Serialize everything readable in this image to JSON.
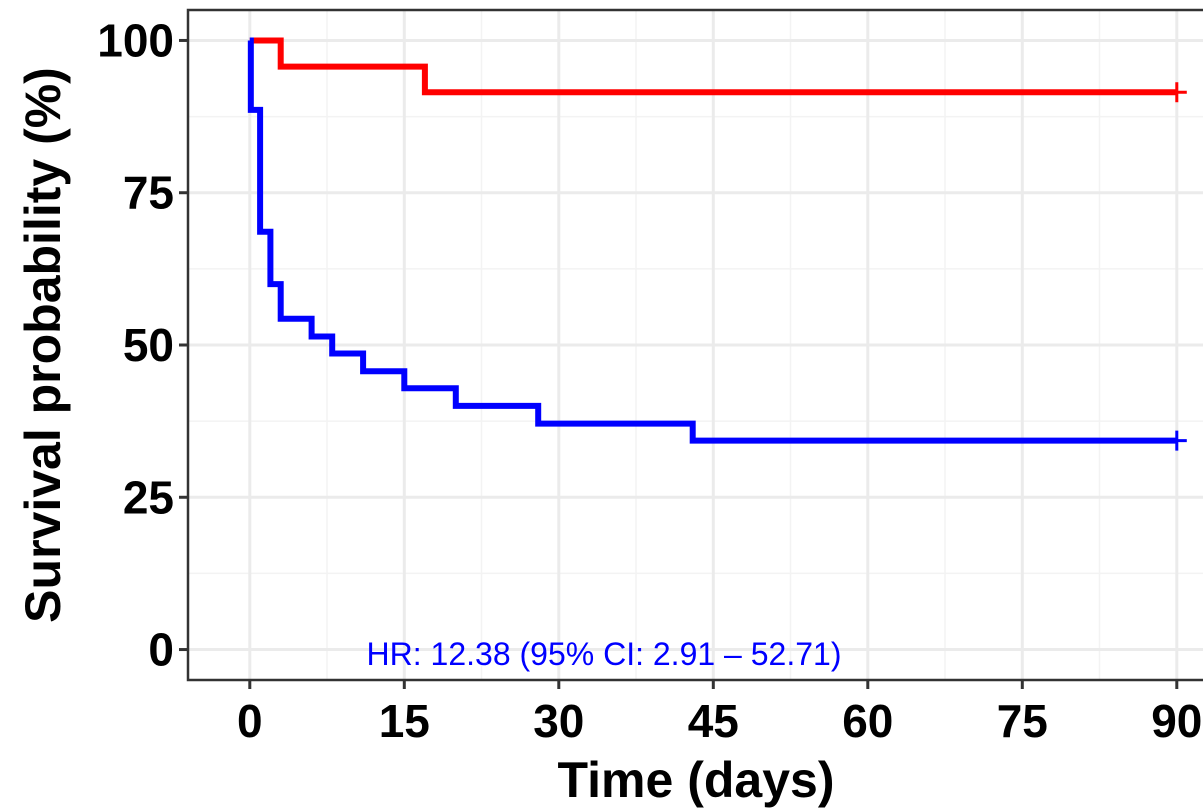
{
  "chart_data": {
    "type": "line",
    "subtype": "kaplan-meier step",
    "xlabel": "Time (days)",
    "ylabel": "Survival probability (%)",
    "xlim": [
      -6,
      94
    ],
    "ylim": [
      -5,
      105
    ],
    "x_ticks": [
      0,
      15,
      30,
      45,
      60,
      75,
      90
    ],
    "y_ticks": [
      0,
      25,
      50,
      75,
      100
    ],
    "x_tick_labels": [
      "0",
      "15",
      "30",
      "45",
      "60",
      "75",
      "90"
    ],
    "y_tick_labels": [
      "0",
      "25",
      "50",
      "75",
      "100"
    ],
    "grid": true,
    "legend": "none",
    "series": [
      {
        "color": "#ff0000",
        "steps": [
          {
            "x": 0,
            "y": 100
          },
          {
            "x": 3,
            "y": 95.7
          },
          {
            "x": 17,
            "y": 91.5
          },
          {
            "x": 90,
            "y": 91.5
          }
        ],
        "censored": [
          {
            "x": 90,
            "y": 91.5
          }
        ]
      },
      {
        "color": "#0000ff",
        "steps": [
          {
            "x": 0,
            "y": 100
          },
          {
            "x": 0.1,
            "y": 88.6
          },
          {
            "x": 1,
            "y": 68.6
          },
          {
            "x": 2,
            "y": 60.0
          },
          {
            "x": 3,
            "y": 54.3
          },
          {
            "x": 6,
            "y": 51.4
          },
          {
            "x": 8,
            "y": 48.6
          },
          {
            "x": 11,
            "y": 45.7
          },
          {
            "x": 15,
            "y": 42.9
          },
          {
            "x": 20,
            "y": 40.0
          },
          {
            "x": 28,
            "y": 37.1
          },
          {
            "x": 43,
            "y": 34.3
          },
          {
            "x": 90,
            "y": 34.3
          }
        ],
        "censored": [
          {
            "x": 90,
            "y": 34.3
          }
        ]
      }
    ],
    "annotations": [
      {
        "text": "HR: 12.38 (95% CI: 2.91 – 52.71)",
        "color": "#0000ff"
      }
    ]
  }
}
